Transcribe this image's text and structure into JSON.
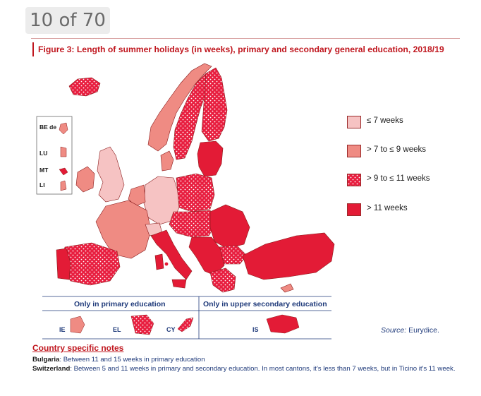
{
  "page_indicator": "10 of 70",
  "figure_title": "Figure 3: Length of summer holidays (in weeks), primary and secondary general education, 2018/19",
  "colors": {
    "le7": "#f6c3c3",
    "7to9": "#ef8b83",
    "9to11_base": "#e81e3f",
    "gt11": "#e31b36",
    "accent": "#c0171f",
    "text_blue": "#1f3a7a"
  },
  "legend": [
    {
      "label": "≤ 7 weeks",
      "pattern": "solid-light"
    },
    {
      "label": "> 7 to ≤ 9 weeks",
      "pattern": "solid-medium"
    },
    {
      "label": "> 9 to ≤ 11 weeks",
      "pattern": "dotted-red"
    },
    {
      "label": "> 11 weeks",
      "pattern": "solid-red"
    }
  ],
  "insets": {
    "be_de": "BE de",
    "lu": "LU",
    "mt": "MT",
    "li": "LI"
  },
  "bottom_panels": {
    "primary_only": {
      "heading": "Only in primary education",
      "countries": [
        "IE",
        "EL",
        "CY"
      ]
    },
    "upper_secondary_only": {
      "heading": "Only in upper secondary education",
      "countries": [
        "IS"
      ]
    }
  },
  "source": {
    "label": "Source:",
    "value": "Eurydice."
  },
  "notes_heading": "Country specific notes",
  "notes": [
    {
      "country": "Bulgaria",
      "text": ": Between 11 and 15 weeks in primary education"
    },
    {
      "country": "Switzerland",
      "text": ": Between 5 and 11 weeks in primary and secondary education. In most cantons, it's less than 7 weeks, but in Ticino it's 11 week."
    }
  ]
}
